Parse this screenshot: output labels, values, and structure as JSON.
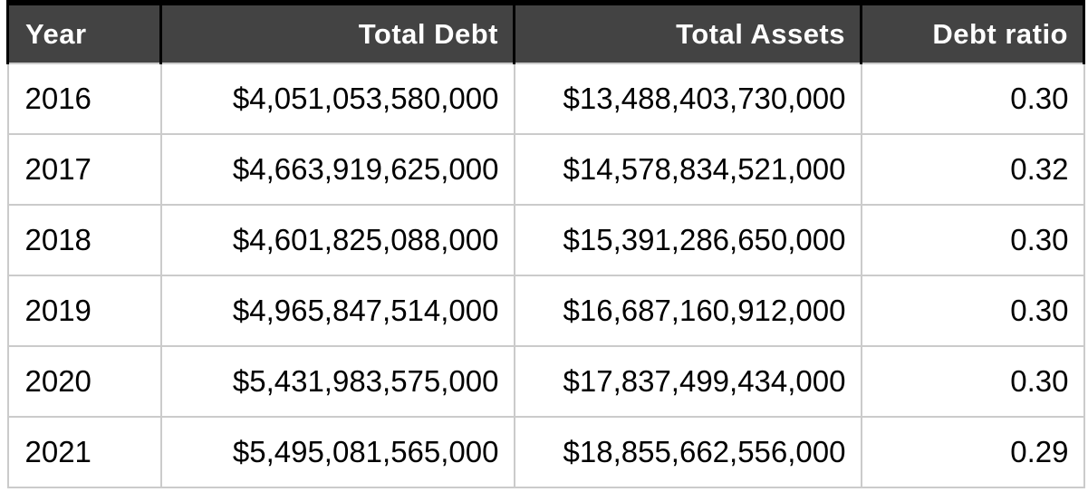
{
  "table": {
    "columns": [
      "Year",
      "Total Debt",
      "Total Assets",
      "Debt ratio"
    ],
    "rows": [
      [
        "2016",
        "$4,051,053,580,000",
        "$13,488,403,730,000",
        "0.30"
      ],
      [
        "2017",
        "$4,663,919,625,000",
        "$14,578,834,521,000",
        "0.32"
      ],
      [
        "2018",
        "$4,601,825,088,000",
        "$15,391,286,650,000",
        "0.30"
      ],
      [
        "2019",
        "$4,965,847,514,000",
        "$16,687,160,912,000",
        "0.30"
      ],
      [
        "2020",
        "$5,431,983,575,000",
        "$17,837,499,434,000",
        "0.30"
      ],
      [
        "2021",
        "$5,495,081,565,000",
        "$18,855,662,556,000",
        "0.29"
      ]
    ]
  },
  "colors": {
    "header_background": "#434343",
    "header_text": "#ffffff",
    "header_border": "#000000",
    "body_grid": "#cbcbcb",
    "body_text": "#000000",
    "body_background": "#ffffff"
  },
  "chart_data": {
    "type": "table",
    "title": "",
    "columns": [
      "Year",
      "Total Debt",
      "Total Assets",
      "Debt ratio"
    ],
    "categories": [
      2016,
      2017,
      2018,
      2019,
      2020,
      2021
    ],
    "series": [
      {
        "name": "Total Debt",
        "values": [
          4051053580000,
          4663919625000,
          4601825088000,
          4965847514000,
          5431983575000,
          5495081565000
        ]
      },
      {
        "name": "Total Assets",
        "values": [
          13488403730000,
          14578834521000,
          15391286650000,
          16687160912000,
          17837499434000,
          18855662556000
        ]
      },
      {
        "name": "Debt ratio",
        "values": [
          0.3,
          0.32,
          0.3,
          0.3,
          0.3,
          0.29
        ]
      }
    ]
  }
}
